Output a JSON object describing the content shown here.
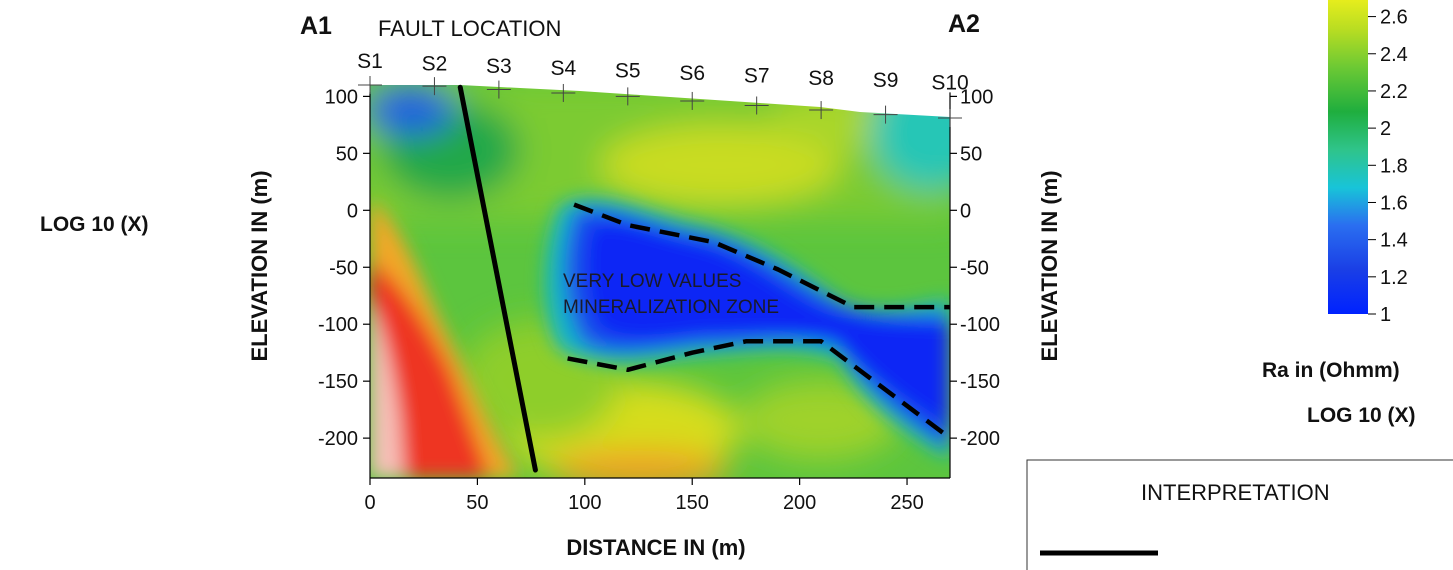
{
  "figure": {
    "left_log_label": "LOG 10  (X)",
    "profile_start": "A1",
    "profile_end": "A2",
    "fault_label": "FAULT LOCATION",
    "zone_label_1": "VERY LOW VALUES",
    "zone_label_2": "MINERALIZATION ZONE"
  },
  "chart_data": {
    "type": "heatmap",
    "title": "",
    "xlabel": "DISTANCE  IN (m)",
    "ylabel": "ELEVATION   IN (m)",
    "xlim": [
      0,
      270
    ],
    "ylim": [
      -235,
      110
    ],
    "x_ticks": [
      0,
      50,
      100,
      150,
      200,
      250
    ],
    "y_ticks": [
      100,
      50,
      0,
      -50,
      -100,
      -150,
      -200
    ],
    "stations": [
      {
        "name": "S1",
        "x": 0,
        "elev": 110
      },
      {
        "name": "S2",
        "x": 30,
        "elev": 109
      },
      {
        "name": "S3",
        "x": 60,
        "elev": 106
      },
      {
        "name": "S4",
        "x": 90,
        "elev": 103
      },
      {
        "name": "S5",
        "x": 120,
        "elev": 100
      },
      {
        "name": "S6",
        "x": 150,
        "elev": 96
      },
      {
        "name": "S7",
        "x": 180,
        "elev": 92
      },
      {
        "name": "S8",
        "x": 210,
        "elev": 88
      },
      {
        "name": "S9",
        "x": 240,
        "elev": 84
      },
      {
        "name": "S10",
        "x": 270,
        "elev": 81
      }
    ],
    "fault_line": [
      [
        42,
        108
      ],
      [
        77,
        -228
      ]
    ],
    "mineralization_zone_boundaries": [
      [
        [
          95,
          5
        ],
        [
          120,
          -13
        ],
        [
          160,
          -28
        ],
        [
          190,
          -52
        ],
        [
          225,
          -85
        ],
        [
          270,
          -85
        ]
      ],
      [
        [
          92,
          -130
        ],
        [
          120,
          -140
        ],
        [
          150,
          -125
        ],
        [
          175,
          -115
        ],
        [
          210,
          -115
        ],
        [
          270,
          -200
        ]
      ]
    ],
    "colorbar": {
      "label": "Ra in  (Ohmm)",
      "scale_label": "LOG 10  (X)",
      "ticks": [
        2.6,
        2.4,
        2.2,
        2,
        1.8,
        1.6,
        1.4,
        1.2,
        1
      ],
      "tick_labels": [
        "2.6",
        "2.4",
        "2.2",
        "2",
        "1.8",
        "1.6",
        "1.4",
        "1.2",
        "1"
      ],
      "colors": [
        "#f2f21a",
        "#b4e01c",
        "#4fc13a",
        "#22ad4a",
        "#17c9bf",
        "#0d8ef2",
        "#1a5fe6",
        "#1c2bd6",
        "#0033ff"
      ]
    }
  },
  "legend": {
    "title": "INTERPRETATION"
  }
}
